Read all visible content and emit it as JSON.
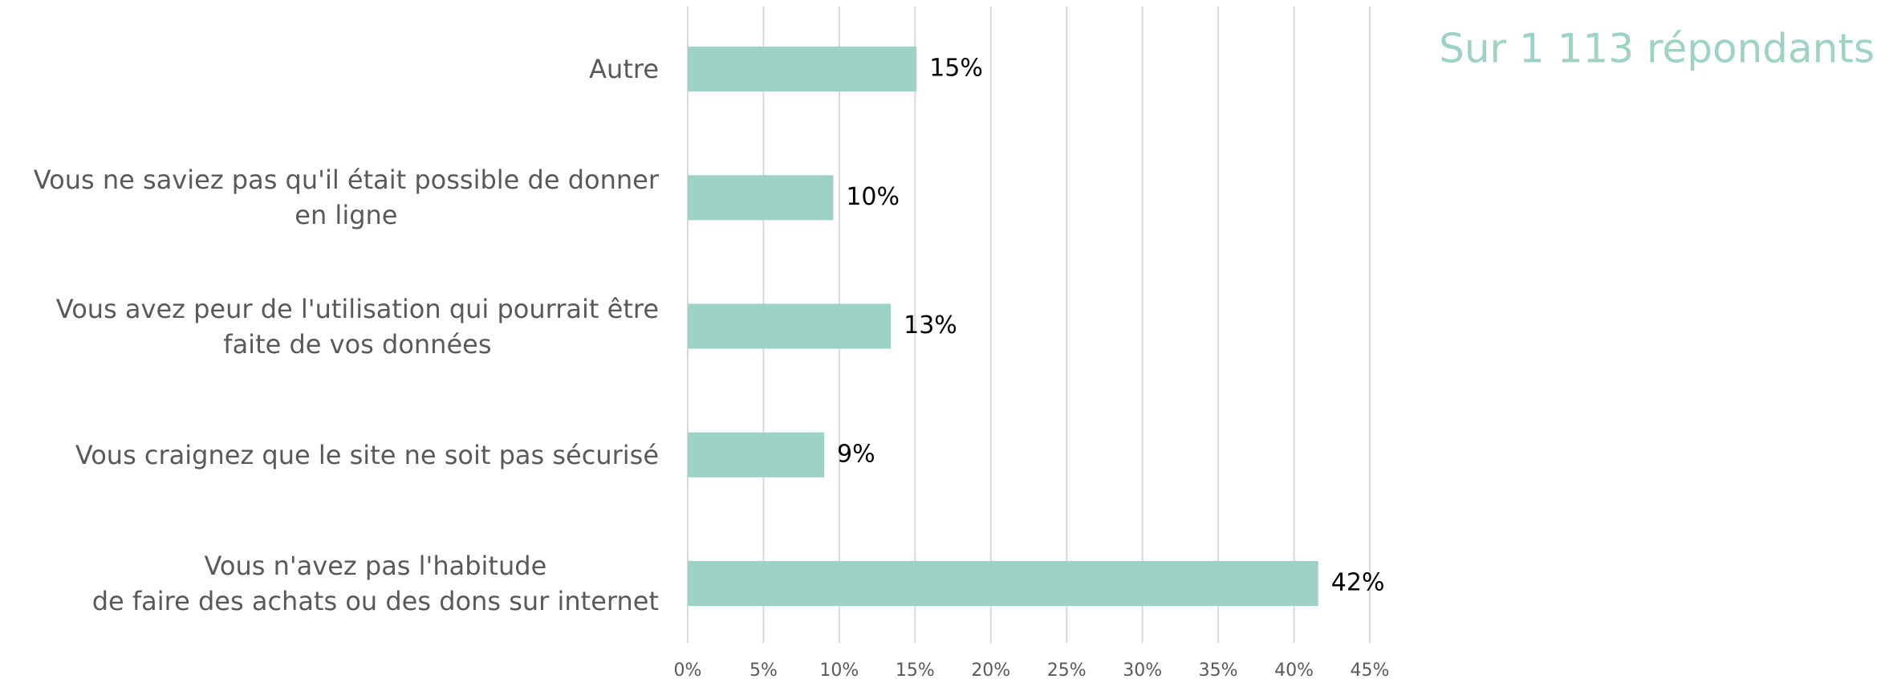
{
  "chart_data": {
    "type": "bar",
    "orientation": "horizontal",
    "subtitle": "Sur 1 113 répondants",
    "categories": [
      "Autre",
      "Vous ne saviez pas qu'il était possible de donner\nen ligne",
      "Vous avez peur de l'utilisation qui pourrait être\nfaite de vos données",
      "Vous craignez que le site ne soit pas sécurisé",
      "Vous n'avez pas l'habitude\nde faire des achats ou des dons sur internet"
    ],
    "values": [
      15.1,
      9.6,
      13.4,
      9.0,
      41.6
    ],
    "value_labels": [
      "15%",
      "10%",
      "13%",
      "9%",
      "42%"
    ],
    "color": "#9dd3c5",
    "xlim": [
      0,
      45
    ],
    "xticks": [
      {
        "value": 0,
        "label": "0%"
      },
      {
        "value": 5,
        "label": "5%"
      },
      {
        "value": 10,
        "label": "10%"
      },
      {
        "value": 15,
        "label": "15%"
      },
      {
        "value": 20,
        "label": "20%"
      },
      {
        "value": 25,
        "label": "25%"
      },
      {
        "value": 30,
        "label": "30%"
      },
      {
        "value": 35,
        "label": "35%"
      },
      {
        "value": 40,
        "label": "40%"
      },
      {
        "value": 45,
        "label": "45%"
      }
    ],
    "grid": true
  }
}
